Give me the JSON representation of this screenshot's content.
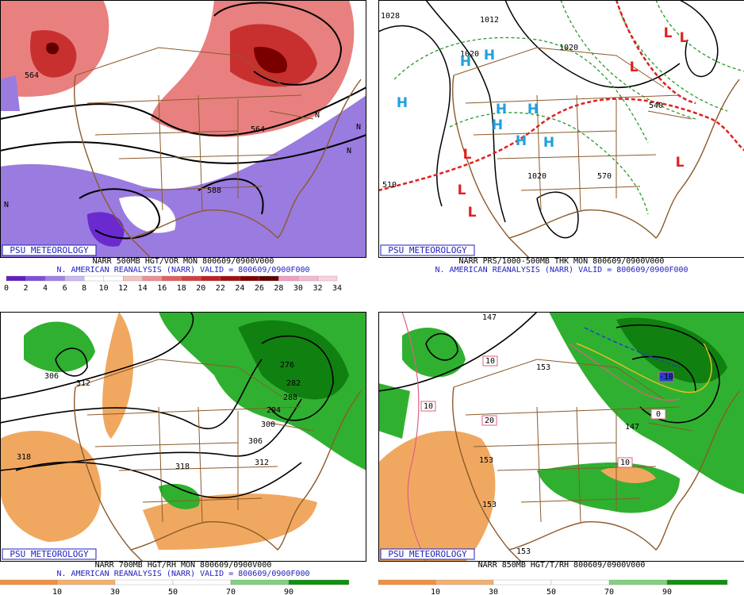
{
  "panels": [
    {
      "brand": "PSU METEOROLOGY",
      "caption": "NARR 500MB HGT/VOR MON 800609/0900V000",
      "subcaption": "N. AMERICAN REANALYSIS (NARR) VALID = 800609/0900F000",
      "colorbar": [
        0,
        2,
        4,
        6,
        8,
        10,
        12,
        14,
        16,
        18,
        20,
        22,
        24,
        26,
        28,
        30,
        32,
        34
      ],
      "map_labels": [
        "564",
        "564",
        "588",
        "N",
        "N",
        "N",
        "N"
      ]
    },
    {
      "brand": "PSU METEOROLOGY",
      "caption": "NARR PRS/1000-500MB THK MON 800609/0900V000",
      "subcaption": "N. AMERICAN REANALYSIS (NARR) VALID = 800609/0900F000",
      "map_labels": [
        "1028",
        "1012",
        "1020",
        "1020",
        "1020",
        "570",
        "540",
        "510",
        "H",
        "H",
        "H",
        "H",
        "H",
        "H",
        "H",
        "H",
        "L",
        "L",
        "L",
        "L",
        "L",
        "L",
        "L"
      ]
    },
    {
      "brand": "PSU METEOROLOGY",
      "caption": "NARR 700MB HGT/RH MON 800609/0900V000",
      "subcaption": "N. AMERICAN REANALYSIS (NARR) VALID = 800609/0900F000",
      "colorbar": [
        10,
        30,
        50,
        70,
        90
      ],
      "map_labels": [
        "306",
        "312",
        "318",
        "318",
        "276",
        "282",
        "288",
        "294",
        "300",
        "306",
        "312"
      ]
    },
    {
      "brand": "PSU METEOROLOGY",
      "caption": "NARR 850MB HGT/T/RH 800609/0900V000",
      "colorbar": [
        10,
        30,
        50,
        70,
        90
      ],
      "map_labels": [
        "147",
        "153",
        "10",
        "10",
        "20",
        "-10",
        "0",
        "147",
        "153",
        "153",
        "153",
        "10"
      ]
    }
  ]
}
